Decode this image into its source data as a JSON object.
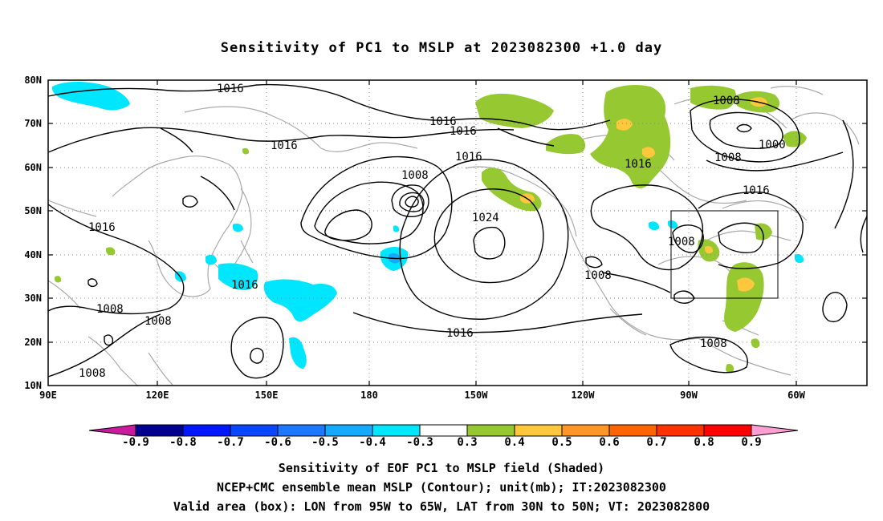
{
  "title": "Sensitivity of PC1 to MSLP at 2023082300 +1.0 day",
  "lat_labels": [
    "80N",
    "70N",
    "60N",
    "50N",
    "40N",
    "30N",
    "20N",
    "10N"
  ],
  "lon_labels": [
    "90E",
    "120E",
    "150E",
    "180",
    "150W",
    "120W",
    "90W",
    "60W"
  ],
  "contour_labels": {
    "c1": "1016",
    "c2": "1016",
    "c3": "1016",
    "c4": "1016",
    "c5": "1016",
    "c6": "1008",
    "c7": "1016",
    "c8": "1024",
    "c9": "1008",
    "c10": "1000",
    "c11": "1008",
    "c12": "1016",
    "c13": "1016",
    "c14": "1016",
    "c15": "1008",
    "c16": "1008",
    "c17": "1008",
    "c18": "1008",
    "c19": "1016",
    "c20": "1008",
    "c21": "1008"
  },
  "colorbar": {
    "ticks": [
      "-0.9",
      "-0.8",
      "-0.7",
      "-0.6",
      "-0.5",
      "-0.4",
      "-0.3",
      "0.3",
      "0.4",
      "0.5",
      "0.6",
      "0.7",
      "0.8",
      "0.9"
    ],
    "colors": [
      "#000090",
      "#0018ff",
      "#0a46ff",
      "#1e78ff",
      "#14aaff",
      "#00e6ff",
      "#ffffff",
      "#96c832",
      "#ffc83c",
      "#ff9628",
      "#ff6400",
      "#ff3200",
      "#ff0000"
    ],
    "low_extend_color": "#cc1a9e",
    "high_extend_color": "#ff9ed2"
  },
  "shading_colors": {
    "green": "#96c832",
    "yellow": "#ffc83c",
    "cyan": "#00e6ff",
    "blue": "#14aaff"
  },
  "valid_box": {
    "lon_from": "95W",
    "lon_to": "65W",
    "lat_from": "30N",
    "lat_to": "50N"
  },
  "caption": {
    "line1": "Sensitivity of EOF PC1 to MSLP field (Shaded)",
    "line2": "NCEP+CMC ensemble mean MSLP (Contour); unit(mb); IT:2023082300",
    "line3": "Valid area (box): LON from 95W to 65W, LAT from 30N to 50N; VT: 2023082800"
  }
}
